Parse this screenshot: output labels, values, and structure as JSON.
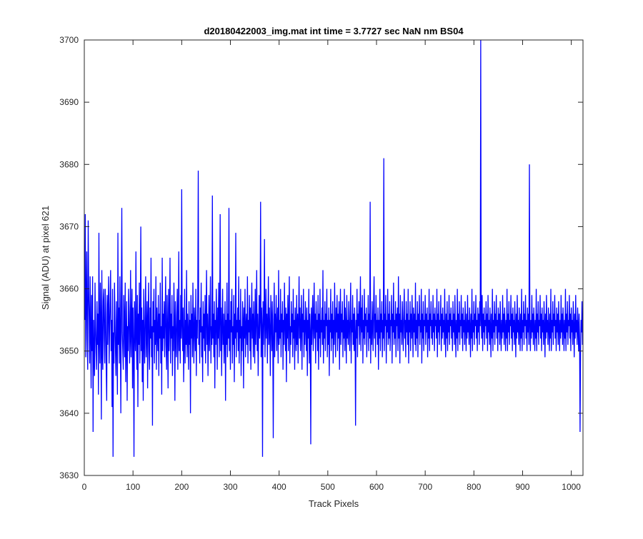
{
  "chart_data": {
    "type": "line",
    "title": "d20180422003_img.mat int time = 3.7727 sec  NaN nm BS04",
    "xlabel": "Track Pixels",
    "ylabel": "Signal (ADU) at pixel 621",
    "xlim": [
      0,
      1024
    ],
    "ylim": [
      3630,
      3700
    ],
    "xticks": [
      0,
      100,
      200,
      300,
      400,
      500,
      600,
      700,
      800,
      900,
      1000
    ],
    "yticks": [
      3630,
      3640,
      3650,
      3660,
      3670,
      3680,
      3690,
      3700
    ],
    "grid": false,
    "series_color": "#0000ff",
    "series": [
      {
        "x_start": 1,
        "x_step": 1,
        "count": 1024,
        "baseline": 3655.5,
        "stats": {
          "min": 3633,
          "max": 3700,
          "typical_range": [
            3645,
            3666
          ]
        },
        "values": [
          3655,
          3672,
          3649,
          3658,
          3666,
          3652,
          3647,
          3671,
          3660,
          3655,
          3648,
          3662,
          3653,
          3644,
          3659,
          3650,
          3662,
          3637,
          3655,
          3649,
          3646,
          3661,
          3654,
          3650,
          3647,
          3658,
          3651,
          3656,
          3643,
          3669,
          3652,
          3648,
          3661,
          3655,
          3639,
          3663,
          3650,
          3647,
          3658,
          3660,
          3652,
          3648,
          3660,
          3656,
          3647,
          3642,
          3659,
          3651,
          3657,
          3662,
          3648,
          3654,
          3658,
          3663,
          3650,
          3655,
          3641,
          3660,
          3633,
          3653,
          3648,
          3661,
          3655,
          3650,
          3646,
          3658,
          3652,
          3643,
          3669,
          3651,
          3657,
          3648,
          3662,
          3654,
          3640,
          3658,
          3673,
          3653,
          3650,
          3647,
          3659,
          3655,
          3649,
          3661,
          3645,
          3652,
          3658,
          3642,
          3654,
          3650,
          3660,
          3656,
          3648,
          3652,
          3663,
          3649,
          3655,
          3660,
          3644,
          3657,
          3651,
          3633,
          3658,
          3654,
          3650,
          3666,
          3652,
          3647,
          3659,
          3641,
          3656,
          3651,
          3661,
          3648,
          3654,
          3670,
          3650,
          3657,
          3645,
          3655,
          3642,
          3660,
          3652,
          3648,
          3656,
          3662,
          3649,
          3653,
          3658,
          3644,
          3655,
          3661,
          3650,
          3647,
          3657,
          3652,
          3665,
          3649,
          3654,
          3638,
          3658,
          3653,
          3660,
          3648,
          3655,
          3651,
          3662,
          3647,
          3657,
          3653,
          3650,
          3659,
          3646,
          3656,
          3652,
          3661,
          3648,
          3654,
          3643,
          3665,
          3650,
          3656,
          3652,
          3658,
          3649,
          3655,
          3662,
          3651,
          3647,
          3659,
          3653,
          3644,
          3660,
          3650,
          3655,
          3665,
          3648,
          3656,
          3652,
          3659,
          3646,
          3654,
          3650,
          3661,
          3655,
          3642,
          3658,
          3652,
          3649,
          3656,
          3660,
          3647,
          3653,
          3666,
          3650,
          3655,
          3648,
          3659,
          3652,
          3676,
          3654,
          3650,
          3657,
          3645,
          3652,
          3660,
          3648,
          3655,
          3651,
          3663,
          3649,
          3656,
          3653,
          3647,
          3658,
          3651,
          3655,
          3640,
          3659,
          3652,
          3656,
          3649,
          3661,
          3653,
          3648,
          3657,
          3654,
          3650,
          3660,
          3646,
          3655,
          3652,
          3659,
          3679,
          3651,
          3655,
          3648,
          3657,
          3653,
          3661,
          3649,
          3654,
          3645,
          3658,
          3652,
          3656,
          3650,
          3659,
          3648,
          3655,
          3663,
          3651,
          3656,
          3646,
          3653,
          3659,
          3650,
          3655,
          3662,
          3648,
          3654,
          3651,
          3675,
          3652,
          3656,
          3649,
          3658,
          3644,
          3655,
          3651,
          3660,
          3654,
          3647,
          3657,
          3652,
          3661,
          3649,
          3655,
          3672,
          3650,
          3657,
          3646,
          3654,
          3660,
          3651,
          3656,
          3648,
          3653,
          3658,
          3642,
          3655,
          3651,
          3661,
          3649,
          3656,
          3652,
          3673,
          3650,
          3655,
          3647,
          3658,
          3653,
          3660,
          3648,
          3654,
          3651,
          3659,
          3645,
          3656,
          3652,
          3669,
          3649,
          3655,
          3653,
          3657,
          3650,
          3662,
          3648,
          3655,
          3652,
          3660,
          3646,
          3654,
          3650,
          3658,
          3655,
          3644,
          3657,
          3652,
          3660,
          3649,
          3654,
          3656,
          3651,
          3662,
          3648,
          3655,
          3653,
          3659,
          3650,
          3657,
          3647,
          3654,
          3661,
          3652,
          3656,
          3649,
          3658,
          3653,
          3648,
          3660,
          3651,
          3655,
          3663,
          3650,
          3656,
          3646,
          3653,
          3659,
          3652,
          3655,
          3674,
          3649,
          3657,
          3654,
          3633,
          3658,
          3651,
          3655,
          3668,
          3649,
          3654,
          3660,
          3652,
          3656,
          3648,
          3655,
          3662,
          3651,
          3657,
          3653,
          3646,
          3659,
          3655,
          3650,
          3658,
          3652,
          3636,
          3655,
          3661,
          3649,
          3656,
          3653,
          3659,
          3650,
          3654,
          3657,
          3648,
          3663,
          3651,
          3655,
          3652,
          3660,
          3649,
          3656,
          3653,
          3658,
          3647,
          3655,
          3651,
          3661,
          3654,
          3650,
          3657,
          3645,
          3656,
          3652,
          3659,
          3650,
          3655,
          3662,
          3648,
          3654,
          3651,
          3658,
          3653,
          3656,
          3649,
          3660,
          3652,
          3655,
          3647,
          3657,
          3654,
          3650,
          3659,
          3651,
          3656,
          3648,
          3655,
          3662,
          3652,
          3657,
          3650,
          3654,
          3659,
          3647,
          3656,
          3653,
          3660,
          3649,
          3655,
          3651,
          3658,
          3654,
          3650,
          3657,
          3646,
          3655,
          3652,
          3660,
          3648,
          3656,
          3653,
          3635,
          3657,
          3651,
          3655,
          3659,
          3650,
          3654,
          3661,
          3652,
          3656,
          3648,
          3658,
          3653,
          3655,
          3650,
          3659,
          3647,
          3656,
          3652,
          3660,
          3649,
          3655,
          3653,
          3657,
          3651,
          3663,
          3648,
          3655,
          3652,
          3658,
          3650,
          3656,
          3654,
          3660,
          3649,
          3655,
          3651,
          3657,
          3646,
          3655,
          3653,
          3660,
          3650,
          3656,
          3652,
          3658,
          3648,
          3655,
          3651,
          3661,
          3654,
          3649,
          3657,
          3653,
          3659,
          3650,
          3656,
          3652,
          3658,
          3647,
          3655,
          3660,
          3651,
          3656,
          3653,
          3658,
          3649,
          3655,
          3652,
          3660,
          3650,
          3657,
          3654,
          3648,
          3659,
          3652,
          3655,
          3651,
          3658,
          3654,
          3650,
          3656,
          3661,
          3648,
          3655,
          3653,
          3659,
          3651,
          3656,
          3650,
          3657,
          3653,
          3638,
          3655,
          3652,
          3660,
          3649,
          3656,
          3654,
          3658,
          3651,
          3655,
          3662,
          3650,
          3657,
          3653,
          3659,
          3648,
          3655,
          3652,
          3660,
          3651,
          3656,
          3654,
          3657,
          3649,
          3655,
          3653,
          3659,
          3650,
          3656,
          3652,
          3674,
          3648,
          3655,
          3651,
          3658,
          3654,
          3650,
          3657,
          3662,
          3652,
          3656,
          3649,
          3659,
          3653,
          3655,
          3651,
          3657,
          3647,
          3655,
          3652,
          3660,
          3650,
          3656,
          3653,
          3658,
          3649,
          3655,
          3652,
          3681,
          3650,
          3656,
          3654,
          3659,
          3648,
          3655,
          3653,
          3660,
          3651,
          3656,
          3652,
          3658,
          3650,
          3655,
          3654,
          3659,
          3648,
          3656,
          3653,
          3661,
          3651,
          3655,
          3652,
          3658,
          3649,
          3656,
          3654,
          3657,
          3650,
          3662,
          3652,
          3656,
          3648,
          3659,
          3653,
          3655,
          3651,
          3658,
          3654,
          3650,
          3656,
          3660,
          3652,
          3655,
          3649,
          3658,
          3653,
          3656,
          3651,
          3660,
          3648,
          3655,
          3653,
          3658,
          3650,
          3656,
          3652,
          3659,
          3654,
          3649,
          3657,
          3653,
          3656,
          3651,
          3661,
          3650,
          3655,
          3652,
          3658,
          3649,
          3656,
          3654,
          3659,
          3651,
          3655,
          3653,
          3660,
          3648,
          3656,
          3652,
          3658,
          3650,
          3655,
          3654,
          3659,
          3651,
          3656,
          3653,
          3657,
          3649,
          3655,
          3652,
          3660,
          3650,
          3656,
          3654,
          3658,
          3652,
          3655,
          3651,
          3659,
          3653,
          3656,
          3650,
          3657,
          3654,
          3655,
          3652,
          3660,
          3649,
          3656,
          3653,
          3658,
          3651,
          3655,
          3654,
          3659,
          3650,
          3656,
          3652,
          3657,
          3653,
          3655,
          3651,
          3660,
          3654,
          3649,
          3656,
          3652,
          3658,
          3650,
          3655,
          3653,
          3659,
          3651,
          3656,
          3654,
          3657,
          3652,
          3655,
          3650,
          3658,
          3653,
          3656,
          3651,
          3659,
          3654,
          3649,
          3655,
          3652,
          3660,
          3650,
          3656,
          3653,
          3658,
          3651,
          3655,
          3654,
          3659,
          3652,
          3656,
          3650,
          3657,
          3653,
          3655,
          3651,
          3658,
          3654,
          3650,
          3656,
          3652,
          3659,
          3653,
          3655,
          3651,
          3657,
          3654,
          3649,
          3656,
          3652,
          3660,
          3650,
          3655,
          3653,
          3658,
          3651,
          3656,
          3654,
          3659,
          3652,
          3655,
          3650,
          3657,
          3653,
          3656,
          3651,
          3658,
          3654,
          3700,
          3655,
          3652,
          3659,
          3650,
          3656,
          3653,
          3657,
          3651,
          3655,
          3654,
          3658,
          3652,
          3656,
          3650,
          3659,
          3653,
          3655,
          3651,
          3657,
          3654,
          3649,
          3656,
          3652,
          3660,
          3650,
          3655,
          3653,
          3658,
          3651,
          3656,
          3654,
          3659,
          3652,
          3655,
          3650,
          3657,
          3653,
          3656,
          3651,
          3658,
          3654,
          3650,
          3655,
          3652,
          3659,
          3653,
          3656,
          3651,
          3657,
          3654,
          3650,
          3655,
          3652,
          3660,
          3650,
          3656,
          3653,
          3658,
          3651,
          3655,
          3654,
          3659,
          3652,
          3656,
          3650,
          3657,
          3653,
          3655,
          3651,
          3658,
          3654,
          3649,
          3656,
          3652,
          3659,
          3653,
          3655,
          3651,
          3657,
          3654,
          3650,
          3656,
          3652,
          3660,
          3650,
          3655,
          3653,
          3658,
          3651,
          3656,
          3654,
          3659,
          3652,
          3655,
          3650,
          3657,
          3653,
          3656,
          3651,
          3680,
          3654,
          3650,
          3655,
          3652,
          3659,
          3653,
          3656,
          3651,
          3657,
          3654,
          3650,
          3655,
          3652,
          3660,
          3650,
          3656,
          3653,
          3658,
          3651,
          3655,
          3654,
          3659,
          3652,
          3656,
          3650,
          3657,
          3653,
          3655,
          3651,
          3658,
          3654,
          3649,
          3656,
          3652,
          3659,
          3653,
          3655,
          3651,
          3657,
          3654,
          3650,
          3656,
          3652,
          3660,
          3650,
          3655,
          3653,
          3658,
          3651,
          3656,
          3654,
          3659,
          3652,
          3655,
          3650,
          3657,
          3653,
          3656,
          3651,
          3658,
          3654,
          3650,
          3655,
          3652,
          3659,
          3653,
          3656,
          3651,
          3657,
          3654,
          3650,
          3655,
          3652,
          3660,
          3650,
          3656,
          3653,
          3658,
          3651,
          3655,
          3654,
          3659,
          3652,
          3656,
          3650,
          3657,
          3653,
          3655,
          3651,
          3658,
          3654,
          3649,
          3656,
          3652,
          3659,
          3653,
          3655,
          3651,
          3657,
          3654,
          3650,
          3656,
          3652,
          3637,
          3650,
          3655,
          3653,
          3658,
          3651,
          3656,
          3654,
          3659,
          3652,
          3655,
          3650,
          3657,
          3653
        ]
      }
    ]
  }
}
